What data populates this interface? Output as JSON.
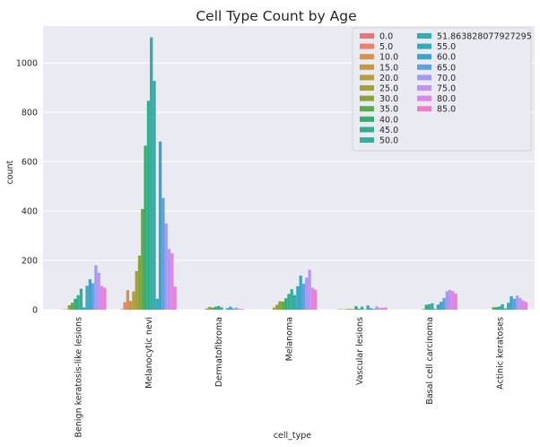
{
  "chart_data": {
    "type": "bar",
    "title": "Cell Type Count by Age",
    "xlabel": "cell_type",
    "ylabel": "count",
    "ylim": [
      0,
      1150
    ],
    "yticks": [
      "0",
      "200",
      "400",
      "600",
      "800",
      "1000"
    ],
    "grid": true,
    "legend_position": "top-right",
    "categories": [
      "Benign keratosis-like lesions",
      "Melanocytic nevi",
      "Dermatofibroma",
      "Melanoma",
      "Vascular lesions",
      "Basal cell carcinoma",
      "Actinic keratoses"
    ],
    "series": [
      {
        "name": "0.0",
        "color": "#e9747a",
        "values": [
          0,
          2,
          0,
          0,
          0,
          0,
          0
        ]
      },
      {
        "name": "5.0",
        "color": "#e8836a",
        "values": [
          0,
          30,
          0,
          0,
          0,
          0,
          0
        ]
      },
      {
        "name": "10.0",
        "color": "#d9904e",
        "values": [
          0,
          79,
          0,
          0,
          1,
          0,
          0
        ]
      },
      {
        "name": "15.0",
        "color": "#c69743",
        "values": [
          0,
          35,
          0,
          0,
          2,
          0,
          0
        ]
      },
      {
        "name": "20.0",
        "color": "#b49d3c",
        "values": [
          1,
          74,
          0,
          9,
          1,
          0,
          0
        ]
      },
      {
        "name": "25.0",
        "color": "#a2a03b",
        "values": [
          1,
          157,
          5,
          20,
          3,
          0,
          0
        ]
      },
      {
        "name": "30.0",
        "color": "#85a43b",
        "values": [
          18,
          219,
          11,
          34,
          3,
          0,
          0
        ]
      },
      {
        "name": "35.0",
        "color": "#5ea94a",
        "values": [
          28,
          408,
          8,
          33,
          2,
          2,
          10
        ]
      },
      {
        "name": "40.0",
        "color": "#36ad6e",
        "values": [
          44,
          665,
          12,
          46,
          14,
          20,
          10
        ]
      },
      {
        "name": "45.0",
        "color": "#34ae8f",
        "values": [
          59,
          847,
          15,
          64,
          4,
          22,
          13
        ]
      },
      {
        "name": "50.0",
        "color": "#35ae9f",
        "values": [
          85,
          1104,
          9,
          83,
          12,
          26,
          22
        ]
      },
      {
        "name": "51.863828077927295",
        "color": "#36abac",
        "values": [
          9,
          928,
          0,
          59,
          1,
          3,
          5
        ]
      },
      {
        "name": "55.0",
        "color": "#38a9b9",
        "values": [
          97,
          44,
          6,
          95,
          17,
          21,
          28
        ]
      },
      {
        "name": "60.0",
        "color": "#3aa5c8",
        "values": [
          123,
          682,
          12,
          138,
          6,
          32,
          55
        ]
      },
      {
        "name": "65.0",
        "color": "#61a0de",
        "values": [
          107,
          453,
          5,
          105,
          3,
          47,
          44
        ]
      },
      {
        "name": "70.0",
        "color": "#a29bf3",
        "values": [
          180,
          349,
          8,
          130,
          13,
          75,
          57
        ]
      },
      {
        "name": "75.0",
        "color": "#c193f0",
        "values": [
          150,
          246,
          4,
          162,
          7,
          80,
          47
        ]
      },
      {
        "name": "80.0",
        "color": "#e184ea",
        "values": [
          96,
          229,
          3,
          89,
          8,
          75,
          37
        ]
      },
      {
        "name": "85.0",
        "color": "#ec7fc5",
        "values": [
          89,
          93,
          0,
          81,
          9,
          65,
          31
        ]
      }
    ]
  }
}
